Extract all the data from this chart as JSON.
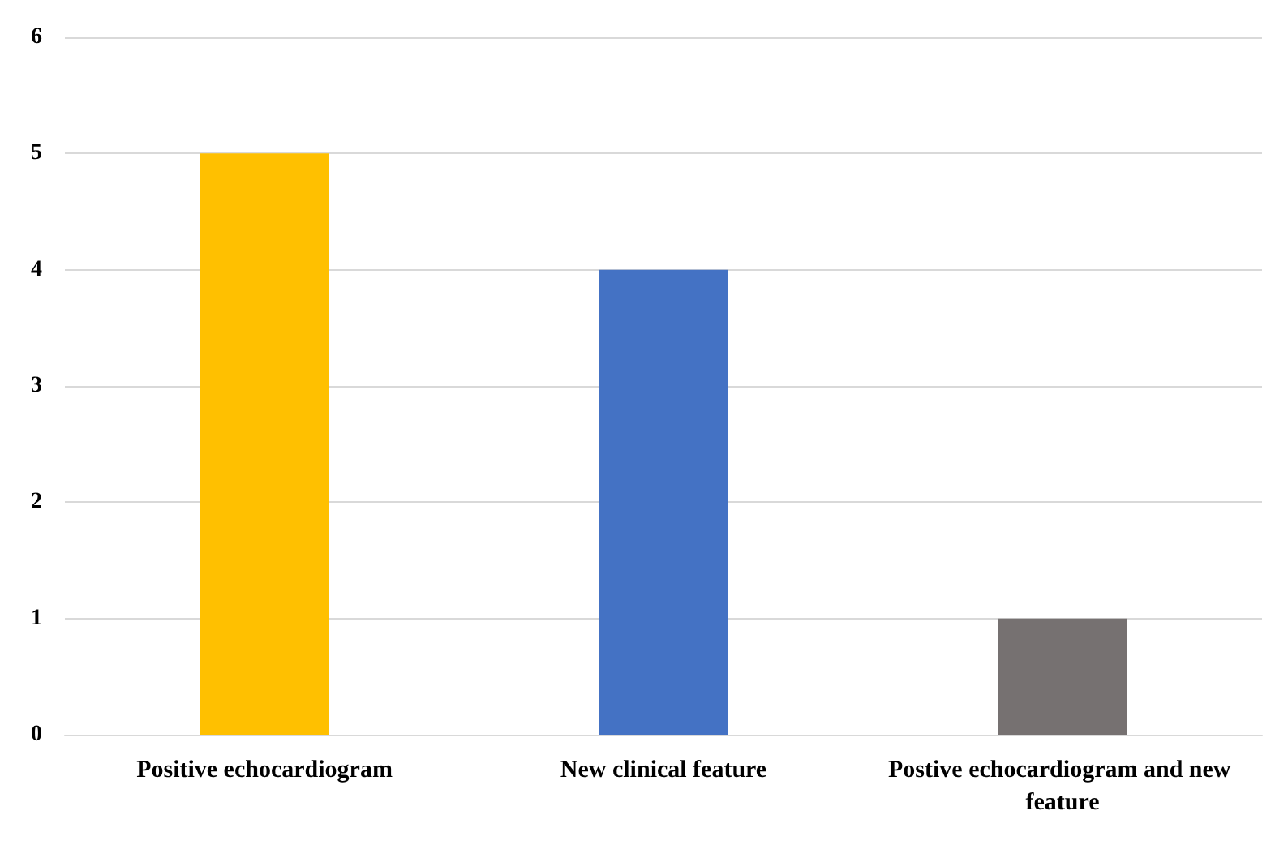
{
  "chart_data": {
    "type": "bar",
    "categories": [
      "Positive echocardiogram",
      "New clinical feature",
      "Postive echocardiogram and new feature"
    ],
    "values": [
      5,
      4,
      1
    ],
    "colors": [
      "#ffc000",
      "#4472c4",
      "#767171"
    ],
    "ylim": [
      0,
      6
    ],
    "yticks": [
      0,
      1,
      2,
      3,
      4,
      5,
      6
    ],
    "grid": "y"
  }
}
